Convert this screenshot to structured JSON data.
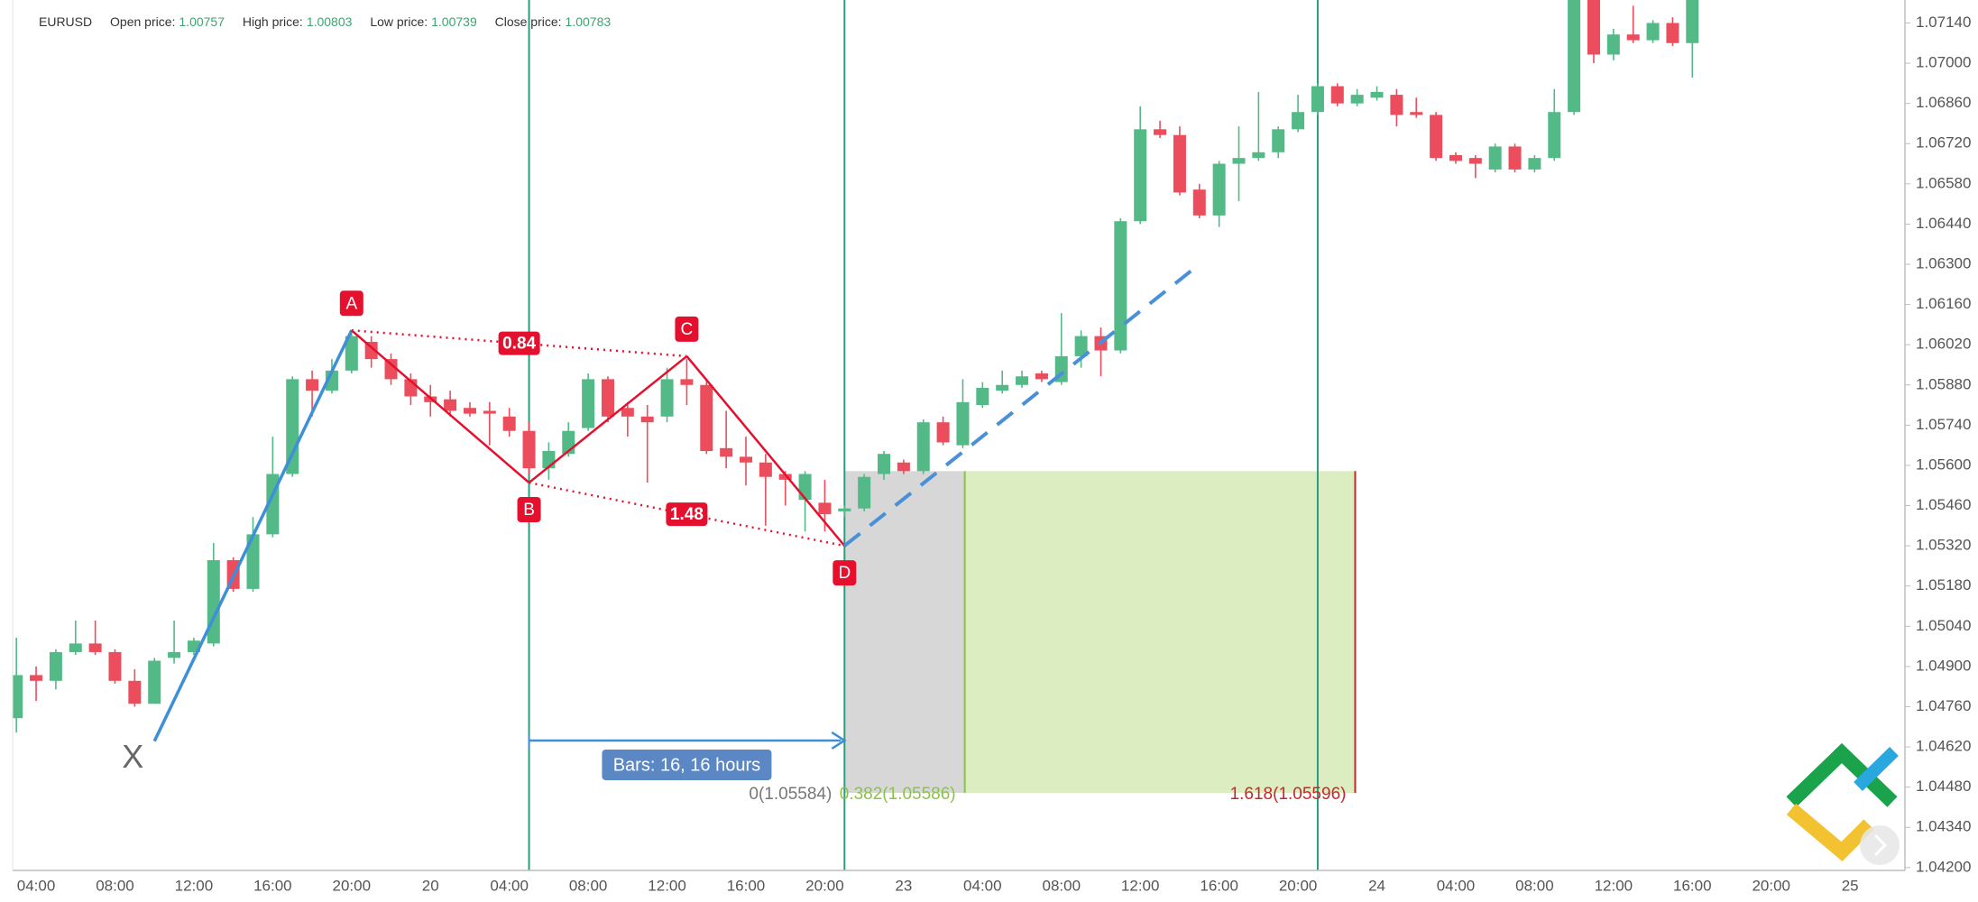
{
  "header": {
    "symbol": "EURUSD",
    "fields": [
      {
        "label": "Open price:",
        "value": 1.00757
      },
      {
        "label": "High price:",
        "value": 1.00803
      },
      {
        "label": "Low price:",
        "value": 1.00739
      },
      {
        "label": "Close price:",
        "value": 1.00783
      }
    ]
  },
  "chart_data": {
    "type": "candlestick",
    "categories": [
      null,
      "04:00",
      null,
      null,
      null,
      "08:00",
      null,
      null,
      null,
      "12:00",
      null,
      null,
      null,
      "16:00",
      null,
      null,
      null,
      "20:00",
      null,
      null,
      null,
      "20",
      null,
      null,
      null,
      "04:00",
      null,
      null,
      null,
      "08:00",
      null,
      null,
      null,
      "12:00",
      null,
      null,
      null,
      "16:00",
      null,
      null,
      null,
      "20:00",
      null,
      null,
      null,
      "23",
      null,
      null,
      null,
      "04:00",
      null,
      null,
      null,
      "08:00",
      null,
      null,
      null,
      "12:00",
      null,
      null,
      null,
      "16:00",
      null,
      null,
      null,
      "20:00",
      null,
      null,
      null,
      "24",
      null,
      null,
      null,
      "04:00",
      null,
      null,
      null,
      "08:00",
      null,
      null,
      null,
      "12:00",
      null,
      null,
      null,
      "16:00",
      null,
      null,
      null,
      "20:00",
      null,
      null,
      null,
      "25",
      null,
      null
    ],
    "open": [
      1.0472,
      1.0487,
      1.0485,
      1.0495,
      1.0498,
      1.0495,
      1.0485,
      1.0477,
      1.0493,
      1.0495,
      1.0498,
      1.0527,
      1.0517,
      1.0536,
      1.0557,
      1.059,
      1.0586,
      1.0593,
      1.0603,
      1.0597,
      1.059,
      1.0584,
      1.0583,
      1.058,
      1.0579,
      1.0577,
      1.0572,
      1.0559,
      1.0564,
      1.0573,
      1.059,
      1.058,
      1.0577,
      1.0577,
      1.059,
      1.0588,
      1.0566,
      1.0563,
      1.0561,
      1.0557,
      1.0548,
      1.0547,
      1.0544,
      1.0545,
      1.0557,
      1.0561,
      1.0558,
      1.0575,
      1.0567,
      1.0581,
      1.0586,
      1.0588,
      1.0592,
      1.0589,
      1.0598,
      1.0605,
      1.06,
      1.0645,
      1.0677,
      1.0675,
      1.0656,
      1.0647,
      1.0665,
      1.0667,
      1.0669,
      1.0677,
      1.0683,
      1.0692,
      1.0686,
      1.0688,
      1.0689,
      1.0683,
      1.0682,
      1.0668,
      1.0667,
      1.0663,
      1.0671,
      1.0663,
      1.0667,
      1.0683,
      1.0728,
      1.0703,
      1.071,
      1.0708,
      1.0714,
      1.0707,
      null,
      null,
      null,
      null,
      null,
      null,
      null,
      null,
      null,
      null
    ],
    "high": [
      1.05,
      1.049,
      1.0496,
      1.0506,
      1.0506,
      1.0496,
      1.0489,
      1.0493,
      1.0506,
      1.05,
      1.0533,
      1.0528,
      1.0542,
      1.057,
      1.0591,
      1.0593,
      1.0597,
      1.0606,
      1.0605,
      1.0599,
      1.0592,
      1.0588,
      1.0586,
      1.0582,
      1.0582,
      1.058,
      1.0575,
      1.0568,
      1.0575,
      1.0592,
      1.0591,
      1.0582,
      1.0581,
      1.0594,
      1.0597,
      1.059,
      1.0579,
      1.057,
      1.0564,
      1.0558,
      1.0558,
      1.0555,
      1.0546,
      1.0557,
      1.0565,
      1.0562,
      1.0576,
      1.0577,
      1.059,
      1.0589,
      1.0593,
      1.0593,
      1.0593,
      1.0613,
      1.0607,
      1.0608,
      1.0646,
      1.0685,
      1.068,
      1.0678,
      1.0658,
      1.0666,
      1.0678,
      1.069,
      1.0678,
      1.0689,
      1.0693,
      1.0693,
      1.0691,
      1.0692,
      1.0691,
      1.0688,
      1.0683,
      1.0669,
      1.0668,
      1.0672,
      1.0672,
      1.0668,
      1.0691,
      1.0735,
      1.0735,
      1.0712,
      1.072,
      1.0715,
      1.0716,
      1.0735,
      null,
      null,
      null,
      null,
      null,
      null,
      null,
      null,
      null,
      null
    ],
    "low": [
      1.0467,
      1.0478,
      1.0482,
      1.0494,
      1.0494,
      1.0484,
      1.0476,
      1.0477,
      1.0491,
      1.0494,
      1.0497,
      1.0516,
      1.0516,
      1.0535,
      1.0556,
      1.0577,
      1.0585,
      1.0592,
      1.0594,
      1.0588,
      1.0581,
      1.0577,
      1.0577,
      1.0577,
      1.0567,
      1.057,
      1.0557,
      1.0555,
      1.0563,
      1.0572,
      1.0575,
      1.057,
      1.0554,
      1.0575,
      1.0581,
      1.0564,
      1.0559,
      1.0553,
      1.0539,
      1.0546,
      1.0537,
      1.0537,
      1.0542,
      1.0544,
      1.0555,
      1.0557,
      1.0557,
      1.0567,
      1.0566,
      1.058,
      1.0585,
      1.0587,
      1.0589,
      1.0588,
      1.0594,
      1.0591,
      1.0599,
      1.0644,
      1.0674,
      1.0654,
      1.0646,
      1.0643,
      1.0652,
      1.0666,
      1.0667,
      1.0676,
      1.0682,
      1.0685,
      1.0685,
      1.0687,
      1.0678,
      1.0681,
      1.0666,
      1.0665,
      1.066,
      1.0662,
      1.0662,
      1.0662,
      1.0666,
      1.0682,
      1.07,
      1.0701,
      1.0707,
      1.0707,
      1.0706,
      1.0695,
      null,
      null,
      null,
      null,
      null,
      null,
      null,
      null,
      null,
      null
    ],
    "close": [
      1.0487,
      1.0485,
      1.0495,
      1.0498,
      1.0495,
      1.0485,
      1.0477,
      1.0492,
      1.0495,
      1.0499,
      1.0527,
      1.0517,
      1.0536,
      1.0557,
      1.059,
      1.0586,
      1.0593,
      1.0605,
      1.0597,
      1.059,
      1.0584,
      1.0582,
      1.0579,
      1.0578,
      1.0578,
      1.0572,
      1.0559,
      1.0565,
      1.0572,
      1.059,
      1.0577,
      1.0577,
      1.0575,
      1.059,
      1.0588,
      1.0565,
      1.0563,
      1.0561,
      1.0556,
      1.0555,
      1.0557,
      1.0543,
      1.0545,
      1.0556,
      1.0564,
      1.0558,
      1.0575,
      1.0568,
      1.0582,
      1.0587,
      1.0588,
      1.0591,
      1.059,
      1.0598,
      1.0605,
      1.06,
      1.0645,
      1.0677,
      1.0675,
      1.0655,
      1.0647,
      1.0665,
      1.0667,
      1.0669,
      1.0677,
      1.0683,
      1.0692,
      1.0686,
      1.0689,
      1.069,
      1.0682,
      1.0682,
      1.0667,
      1.0666,
      1.0665,
      1.0671,
      1.0663,
      1.0667,
      1.0683,
      1.073,
      1.0703,
      1.071,
      1.0708,
      1.0714,
      1.0707,
      1.073,
      null,
      null,
      null,
      null,
      null,
      null,
      null,
      null,
      null,
      null
    ],
    "up_color": "#53b987",
    "down_color": "#eb4d5c",
    "ylim": [
      1.0419,
      1.0722
    ],
    "yticks": [
      {
        "value": 1.0714,
        "label": "1.07140"
      },
      {
        "value": 1.07,
        "label": "1.07000"
      },
      {
        "value": 1.0686,
        "label": "1.06860"
      },
      {
        "value": 1.0672,
        "label": "1.06720"
      },
      {
        "value": 1.0658,
        "label": "1.06580"
      },
      {
        "value": 1.0644,
        "label": "1.06440"
      },
      {
        "value": 1.063,
        "label": "1.06300"
      },
      {
        "value": 1.0616,
        "label": "1.06160"
      },
      {
        "value": 1.0602,
        "label": "1.06020"
      },
      {
        "value": 1.0588,
        "label": "1.05880"
      },
      {
        "value": 1.0574,
        "label": "1.05740"
      },
      {
        "value": 1.056,
        "label": "1.05600"
      },
      {
        "value": 1.0546,
        "label": "1.05460"
      },
      {
        "value": 1.0532,
        "label": "1.05320"
      },
      {
        "value": 1.0518,
        "label": "1.05180"
      },
      {
        "value": 1.0504,
        "label": "1.05040"
      },
      {
        "value": 1.049,
        "label": "1.04900"
      },
      {
        "value": 1.0476,
        "label": "1.04760"
      },
      {
        "value": 1.0462,
        "label": "1.04620"
      },
      {
        "value": 1.0448,
        "label": "1.04480"
      },
      {
        "value": 1.0434,
        "label": "1.04340"
      },
      {
        "value": 1.042,
        "label": "1.04200"
      }
    ],
    "grid": false,
    "pattern": {
      "color": "#e4102e",
      "leg_color": "#3d8fd8",
      "points": [
        {
          "label": "X",
          "x": 7,
          "y": 1.0464
        },
        {
          "label": "A",
          "x": 17,
          "y": 1.0607
        },
        {
          "label": "B",
          "x": 26,
          "y": 1.0554
        },
        {
          "label": "C",
          "x": 34,
          "y": 1.0598
        },
        {
          "label": "D",
          "x": 42,
          "y": 1.0532
        }
      ],
      "ratios": [
        0.84,
        1.48
      ]
    },
    "projection": {
      "x": [
        42,
        60
      ],
      "y": [
        1.0532,
        1.063
      ]
    },
    "vertical_lines": [
      26,
      42,
      66
    ],
    "measure": {
      "from": 26,
      "to": 42,
      "label": "Bars: 16, 16 hours"
    },
    "fib": {
      "x": [
        42,
        48.1,
        67.9
      ],
      "top": 1.0558,
      "bottom": 1.0446,
      "labels": [
        "0(1.05584)",
        "0.382(1.05586)",
        "1.618(1.05596)"
      ]
    }
  }
}
